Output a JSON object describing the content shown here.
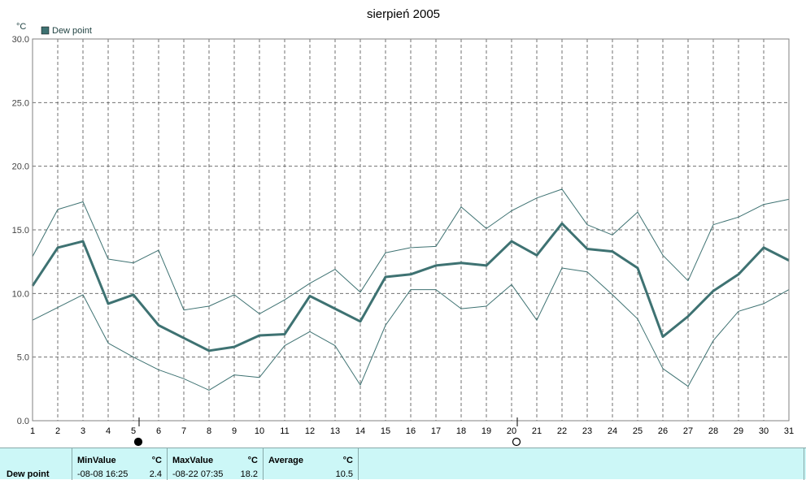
{
  "chart_data": {
    "type": "line",
    "title": "sierpień 2005",
    "ylabel": "°C",
    "ylim": [
      0,
      30
    ],
    "yticks": [
      "0.0",
      "5.0",
      "10.0",
      "15.0",
      "20.0",
      "25.0",
      "30.0"
    ],
    "x": [
      1,
      2,
      3,
      4,
      5,
      6,
      7,
      8,
      9,
      10,
      11,
      12,
      13,
      14,
      15,
      16,
      17,
      18,
      19,
      20,
      21,
      22,
      23,
      24,
      25,
      26,
      27,
      28,
      29,
      30,
      31
    ],
    "grid": true,
    "legend_position": "top-left",
    "series": [
      {
        "name": "Dew point",
        "role": "average",
        "color": "#3e7272",
        "values": [
          10.6,
          13.6,
          14.1,
          9.2,
          9.9,
          7.5,
          6.5,
          5.5,
          5.8,
          6.7,
          6.8,
          9.8,
          8.8,
          7.8,
          11.3,
          11.5,
          12.2,
          12.4,
          12.2,
          14.1,
          13.0,
          15.5,
          13.5,
          13.3,
          12.0,
          6.6,
          8.2,
          10.2,
          11.5,
          13.6,
          12.6
        ]
      },
      {
        "role": "max",
        "color": "#3e7272",
        "values": [
          12.9,
          16.6,
          17.2,
          12.7,
          12.4,
          13.4,
          8.7,
          9.0,
          9.9,
          8.4,
          9.5,
          10.8,
          11.9,
          10.1,
          13.2,
          13.6,
          13.7,
          16.8,
          15.1,
          16.5,
          17.5,
          18.2,
          15.4,
          14.6,
          16.4,
          13.0,
          11.0,
          15.4,
          16.0,
          17.0,
          17.4
        ]
      },
      {
        "role": "min",
        "color": "#3e7272",
        "values": [
          7.9,
          8.9,
          9.9,
          6.1,
          5.0,
          4.0,
          3.3,
          2.4,
          3.6,
          3.4,
          5.9,
          7.0,
          5.9,
          2.8,
          7.5,
          10.3,
          10.3,
          8.8,
          9.0,
          10.7,
          7.9,
          12.0,
          11.7,
          9.9,
          8.0,
          4.1,
          2.7,
          6.3,
          8.6,
          9.2,
          10.3
        ]
      }
    ],
    "moon_markers": [
      {
        "day": 5,
        "phase": "new-moon"
      },
      {
        "day": 20,
        "phase": "full-moon"
      }
    ]
  },
  "summary": {
    "row_label": "Dew point",
    "min": {
      "header": "MinValue",
      "unit": "°C",
      "timestamp": "-08-08  16:25",
      "value": "2.4"
    },
    "max": {
      "header": "MaxValue",
      "unit": "°C",
      "timestamp": "-08-22  07:35",
      "value": "18.2"
    },
    "avg": {
      "header": "Average",
      "unit": "°C",
      "value": "10.5"
    }
  }
}
